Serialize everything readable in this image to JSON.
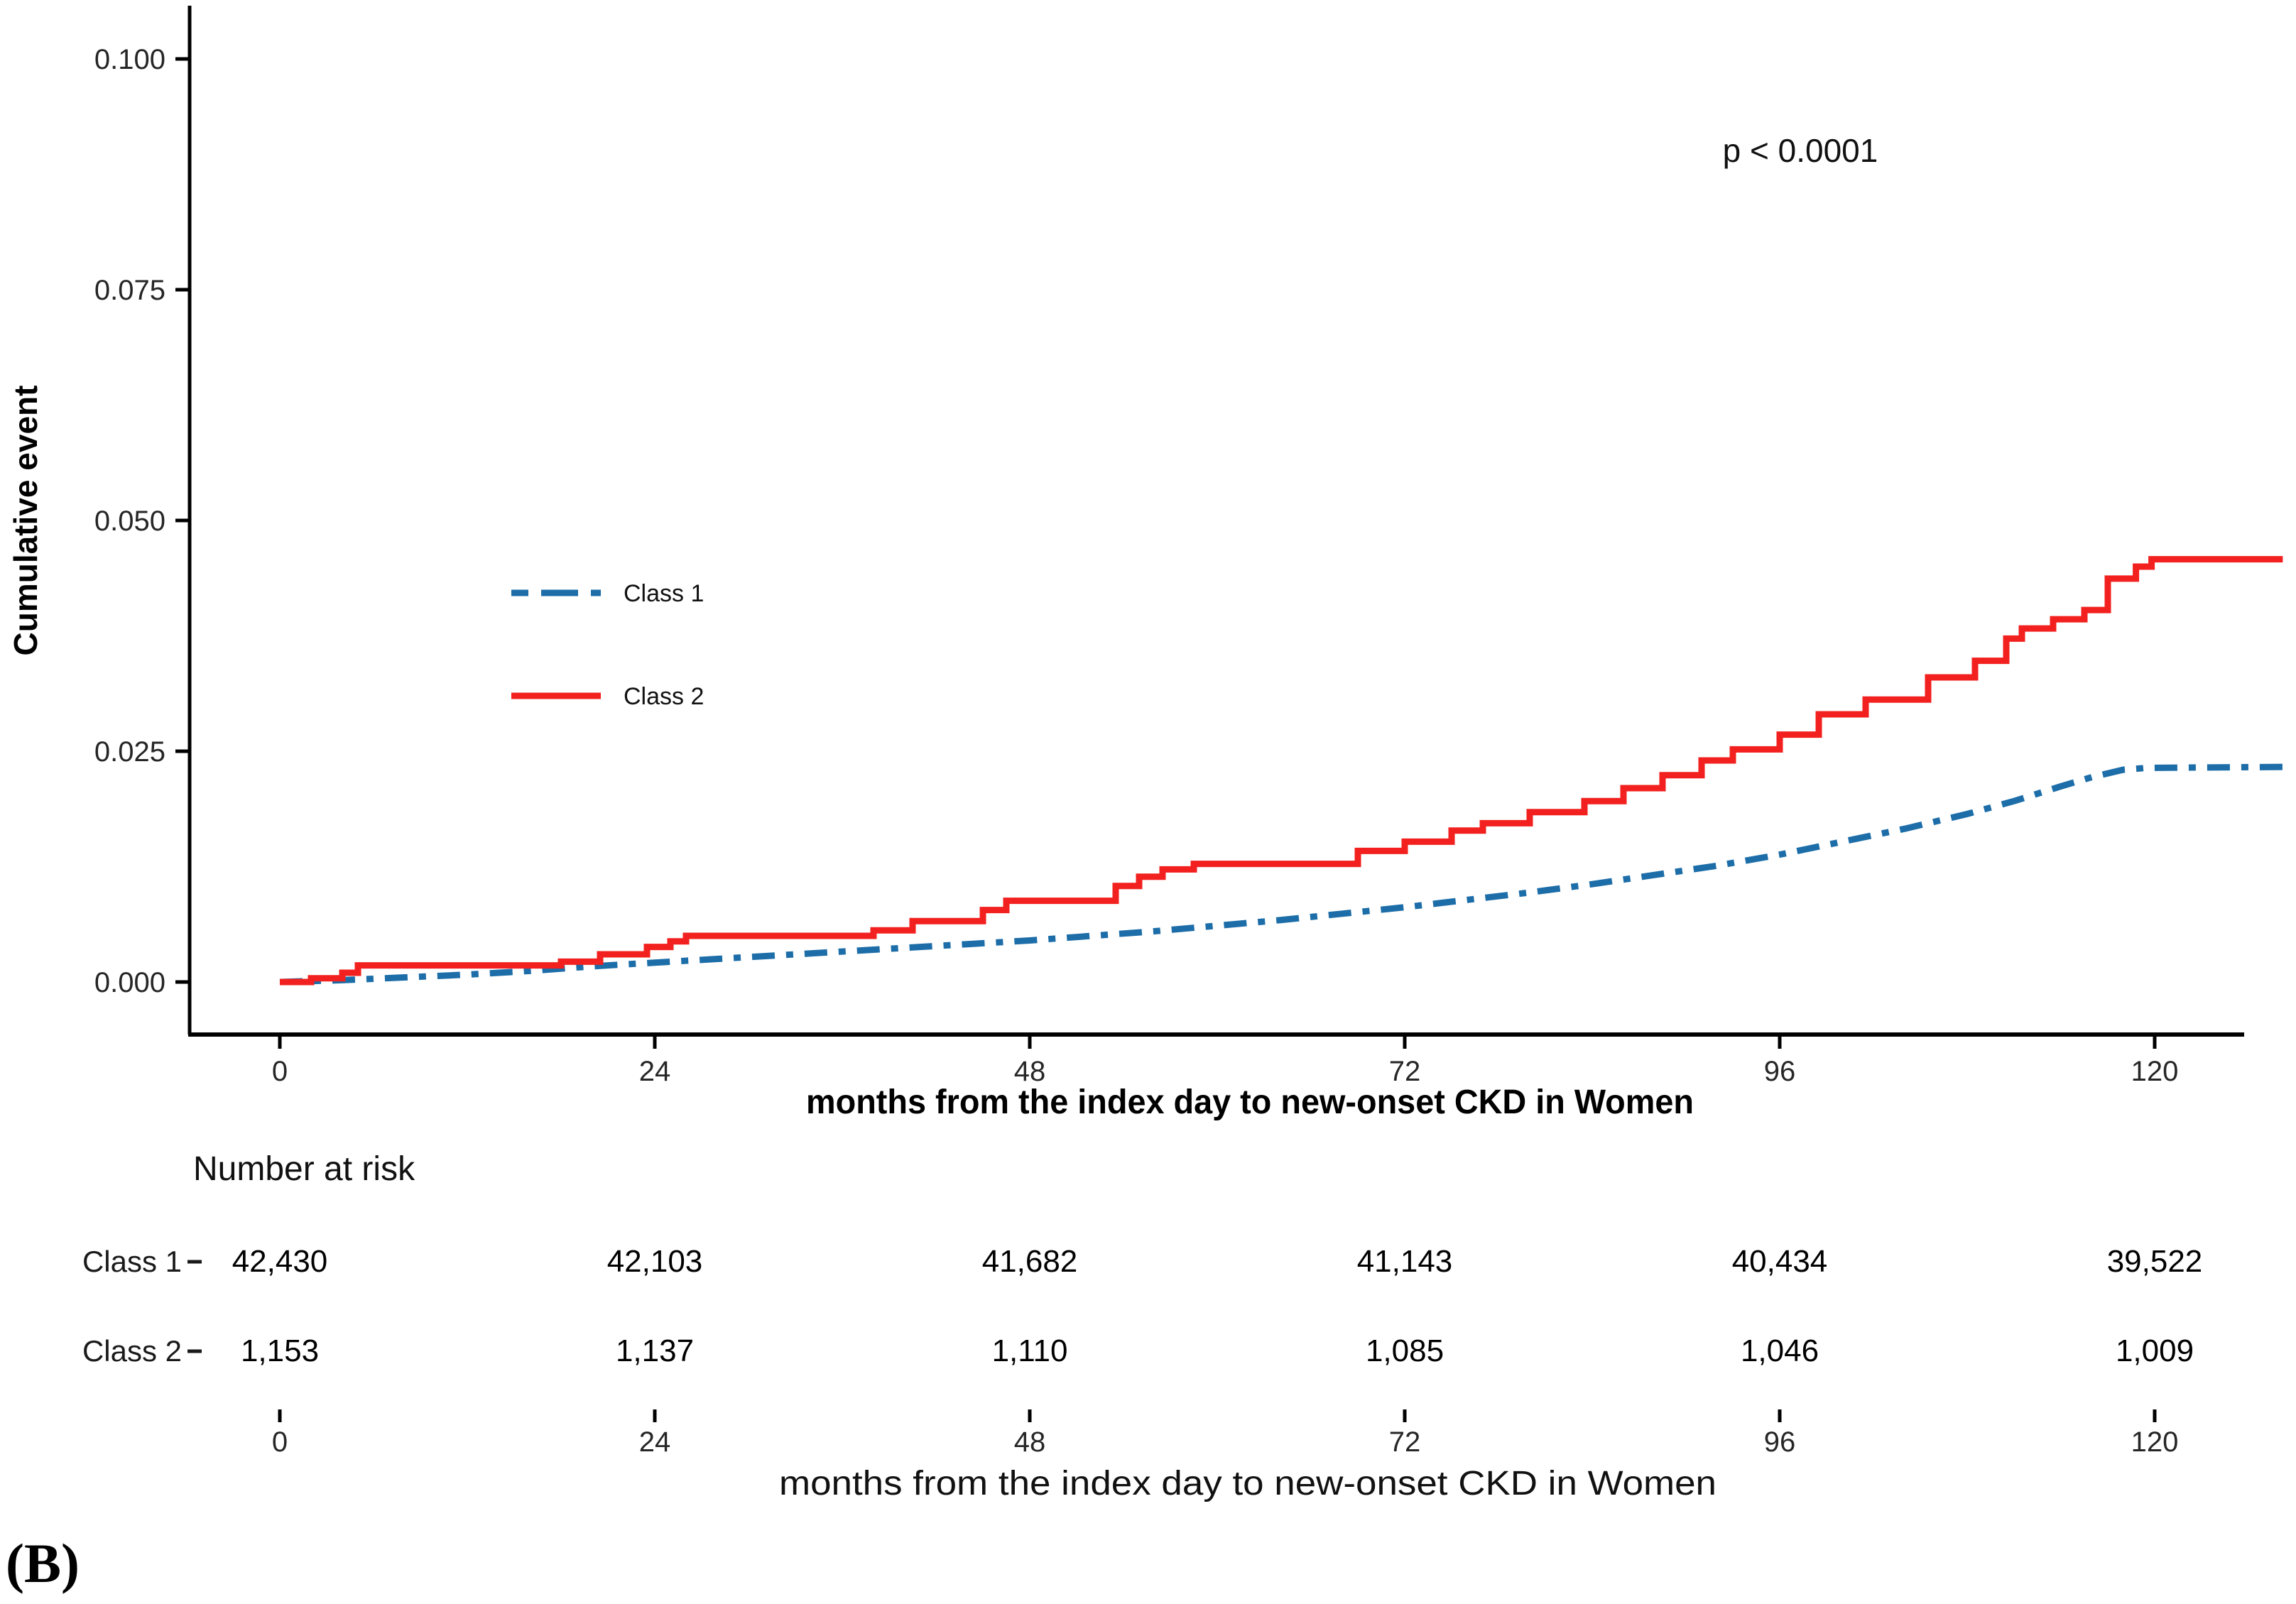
{
  "panel_label": "(B)",
  "colors": {
    "class1_blue": "#1C6DA8",
    "class2_red": "#F2201E",
    "axis": "#000000",
    "tick_text": "#262626"
  },
  "chart_data": {
    "type": "line",
    "subtype": "kaplan-meier-cumulative-incidence",
    "p_value": "p < 0.0001",
    "grid": false,
    "legend_position": "inside-left-middle",
    "x_axis": {
      "label": "months from the index day to new-onset CKD in Women",
      "ticks": [
        0,
        24,
        48,
        72,
        96,
        120
      ],
      "tick_labels": [
        "0",
        "24",
        "48",
        "72",
        "96",
        "120"
      ],
      "range": [
        0,
        128
      ]
    },
    "y_axis": {
      "label": "Cumulative event",
      "ticks": [
        0.1,
        0.075,
        0.05,
        0.025,
        0.0
      ],
      "tick_labels": [
        "0.100",
        "0.075",
        "0.050",
        "0.025",
        "0.000"
      ],
      "range": [
        0,
        0.1
      ]
    },
    "series": [
      {
        "name": "Class 1",
        "color": "#1C6DA8",
        "line_style": "dash-dot",
        "interpolation": "linear",
        "points": [
          [
            0,
            0
          ],
          [
            4,
            0.0002
          ],
          [
            8,
            0.0005
          ],
          [
            12,
            0.0008
          ],
          [
            16,
            0.0012
          ],
          [
            20,
            0.0017
          ],
          [
            24,
            0.0021
          ],
          [
            28,
            0.0025
          ],
          [
            32,
            0.0029
          ],
          [
            36,
            0.0033
          ],
          [
            40,
            0.0037
          ],
          [
            44,
            0.0041
          ],
          [
            48,
            0.0045
          ],
          [
            52,
            0.005
          ],
          [
            56,
            0.0055
          ],
          [
            60,
            0.0061
          ],
          [
            64,
            0.0067
          ],
          [
            68,
            0.0074
          ],
          [
            72,
            0.0081
          ],
          [
            76,
            0.0089
          ],
          [
            80,
            0.0097
          ],
          [
            84,
            0.0106
          ],
          [
            88,
            0.0116
          ],
          [
            92,
            0.0126
          ],
          [
            96,
            0.0138
          ],
          [
            100,
            0.0152
          ],
          [
            104,
            0.0166
          ],
          [
            108,
            0.0182
          ],
          [
            111,
            0.0196
          ],
          [
            114,
            0.0212
          ],
          [
            116,
            0.0222
          ],
          [
            118,
            0.023
          ],
          [
            119.5,
            0.0232
          ],
          [
            128.2,
            0.0233
          ]
        ]
      },
      {
        "name": "Class 2",
        "color": "#F2201E",
        "line_style": "solid",
        "interpolation": "step-after",
        "points": [
          [
            0,
            0
          ],
          [
            2,
            0.0004
          ],
          [
            4,
            0.001
          ],
          [
            5,
            0.0018
          ],
          [
            18,
            0.0022
          ],
          [
            20.5,
            0.003
          ],
          [
            23.5,
            0.0038
          ],
          [
            25,
            0.0044
          ],
          [
            26,
            0.005
          ],
          [
            38,
            0.0056
          ],
          [
            40.5,
            0.0066
          ],
          [
            45,
            0.0078
          ],
          [
            46.5,
            0.0088
          ],
          [
            53.5,
            0.0104
          ],
          [
            55,
            0.0114
          ],
          [
            56.5,
            0.0122
          ],
          [
            58.5,
            0.0128
          ],
          [
            69,
            0.0142
          ],
          [
            72,
            0.0152
          ],
          [
            75,
            0.0164
          ],
          [
            77,
            0.0172
          ],
          [
            80,
            0.0184
          ],
          [
            83.5,
            0.0196
          ],
          [
            86,
            0.021
          ],
          [
            88.5,
            0.0224
          ],
          [
            91,
            0.024
          ],
          [
            93,
            0.0252
          ],
          [
            96,
            0.0268
          ],
          [
            98.5,
            0.029
          ],
          [
            101.5,
            0.0306
          ],
          [
            105.5,
            0.033
          ],
          [
            108.5,
            0.0348
          ],
          [
            110.5,
            0.0372
          ],
          [
            111.5,
            0.0383
          ],
          [
            113.5,
            0.0393
          ],
          [
            115.5,
            0.0403
          ],
          [
            117,
            0.0437
          ],
          [
            118.8,
            0.045
          ],
          [
            119.8,
            0.0458
          ],
          [
            128.2,
            0.0458
          ]
        ]
      }
    ],
    "risk_table": {
      "title": "Number at risk",
      "axis_label": "months from the index day to new-onset CKD in Women",
      "times": [
        0,
        24,
        48,
        72,
        96,
        120
      ],
      "time_labels": [
        "0",
        "24",
        "48",
        "72",
        "96",
        "120"
      ],
      "rows": [
        {
          "name": "Class 1",
          "color": "#1C6DA8",
          "values": [
            "42,430",
            "42,103",
            "41,682",
            "41,143",
            "40,434",
            "39,522"
          ]
        },
        {
          "name": "Class 2",
          "color": "#F2201E",
          "values": [
            "1,153",
            "1,137",
            "1,110",
            "1,085",
            "1,046",
            "1,009"
          ]
        }
      ]
    }
  }
}
